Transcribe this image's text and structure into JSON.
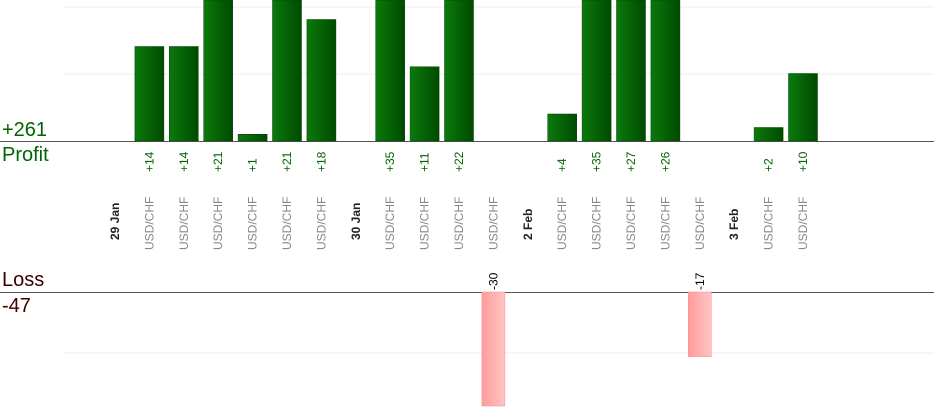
{
  "summary": {
    "profit_value": "+261",
    "profit_label": "Profit",
    "loss_label": "Loss",
    "loss_value": "-47"
  },
  "colors": {
    "profit_bar": "#0a6a0a",
    "profit_bar_dark": "#004d00",
    "profit_text": "#006400",
    "loss_bar": "#ffaaaa",
    "loss_text": "#3b0000",
    "instrument_text": "#888888",
    "date_text": "#222222"
  },
  "chart_data": {
    "type": "bar",
    "instrument": "USD/CHF",
    "groups": [
      {
        "date": "29 Jan",
        "trades": [
          {
            "pair": "USD/CHF",
            "value": 14
          },
          {
            "pair": "USD/CHF",
            "value": 14
          },
          {
            "pair": "USD/CHF",
            "value": 21
          },
          {
            "pair": "USD/CHF",
            "value": 1
          },
          {
            "pair": "USD/CHF",
            "value": 21
          },
          {
            "pair": "USD/CHF",
            "value": 18
          }
        ]
      },
      {
        "date": "30 Jan",
        "trades": [
          {
            "pair": "USD/CHF",
            "value": 35
          },
          {
            "pair": "USD/CHF",
            "value": 11
          },
          {
            "pair": "USD/CHF",
            "value": 22
          },
          {
            "pair": "USD/CHF",
            "value": -30
          }
        ]
      },
      {
        "date": "2 Feb",
        "trades": [
          {
            "pair": "USD/CHF",
            "value": 4
          },
          {
            "pair": "USD/CHF",
            "value": 35
          },
          {
            "pair": "USD/CHF",
            "value": 27
          },
          {
            "pair": "USD/CHF",
            "value": 26
          },
          {
            "pair": "USD/CHF",
            "value": -17
          }
        ]
      },
      {
        "date": "3 Feb",
        "trades": [
          {
            "pair": "USD/CHF",
            "value": 2
          },
          {
            "pair": "USD/CHF",
            "value": 10
          }
        ]
      }
    ],
    "profit_axis_max": 21,
    "loss_axis_min": -18,
    "grid": true,
    "value_labels": "rotated, above loss bars and below profit bars"
  }
}
